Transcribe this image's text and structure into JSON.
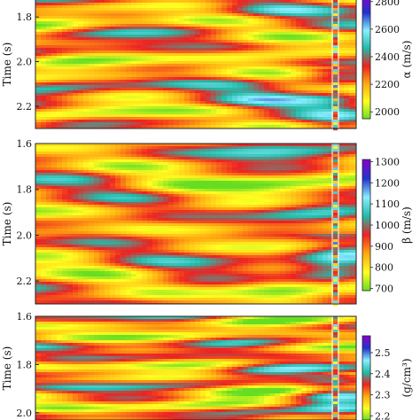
{
  "chart_data": [
    {
      "type": "heatmap",
      "title": "",
      "ylabel": "Time (s)",
      "yticks": [
        "1.8",
        "2.0",
        "2.2"
      ],
      "ylim": [
        1.7,
        2.3
      ],
      "colorbar_label": "α (m/s)",
      "colorbar_ticks": [
        "2000",
        "2200",
        "2400",
        "2600",
        "2800"
      ],
      "clim": [
        1950,
        2850
      ],
      "colormap": [
        "#66dd22",
        "#ffff22",
        "#ffaa11",
        "#ee2222",
        "#22bbaa",
        "#88eeff",
        "#2233cc",
        "#8800cc"
      ],
      "well_trace": true
    },
    {
      "type": "heatmap",
      "title": "",
      "ylabel": "Time (s)",
      "yticks": [
        "1.6",
        "1.8",
        "2.0",
        "2.2"
      ],
      "ylim": [
        1.6,
        2.3
      ],
      "colorbar_label": "β (m/s)",
      "colorbar_ticks": [
        "700",
        "800",
        "900",
        "1000",
        "1100",
        "1200",
        "1300"
      ],
      "clim": [
        690,
        1310
      ],
      "colormap": [
        "#66dd22",
        "#ffff22",
        "#ffaa11",
        "#ee2222",
        "#22bbaa",
        "#88eeff",
        "#2233cc",
        "#8800cc"
      ],
      "well_trace": true
    },
    {
      "type": "heatmap",
      "title": "",
      "ylabel": "Time (s)",
      "yticks": [
        "1.6",
        "1.8",
        "2.0"
      ],
      "ylim": [
        1.6,
        2.03
      ],
      "colorbar_label": "(g/cm³)",
      "colorbar_ticks": [
        "2.2",
        "2.3",
        "2.4",
        "2.5"
      ],
      "clim": [
        2.18,
        2.58
      ],
      "colormap": [
        "#66dd22",
        "#ffff22",
        "#ffaa11",
        "#ee2222",
        "#22bbaa",
        "#88eeff",
        "#2233cc",
        "#8800cc"
      ],
      "well_trace": true
    }
  ]
}
